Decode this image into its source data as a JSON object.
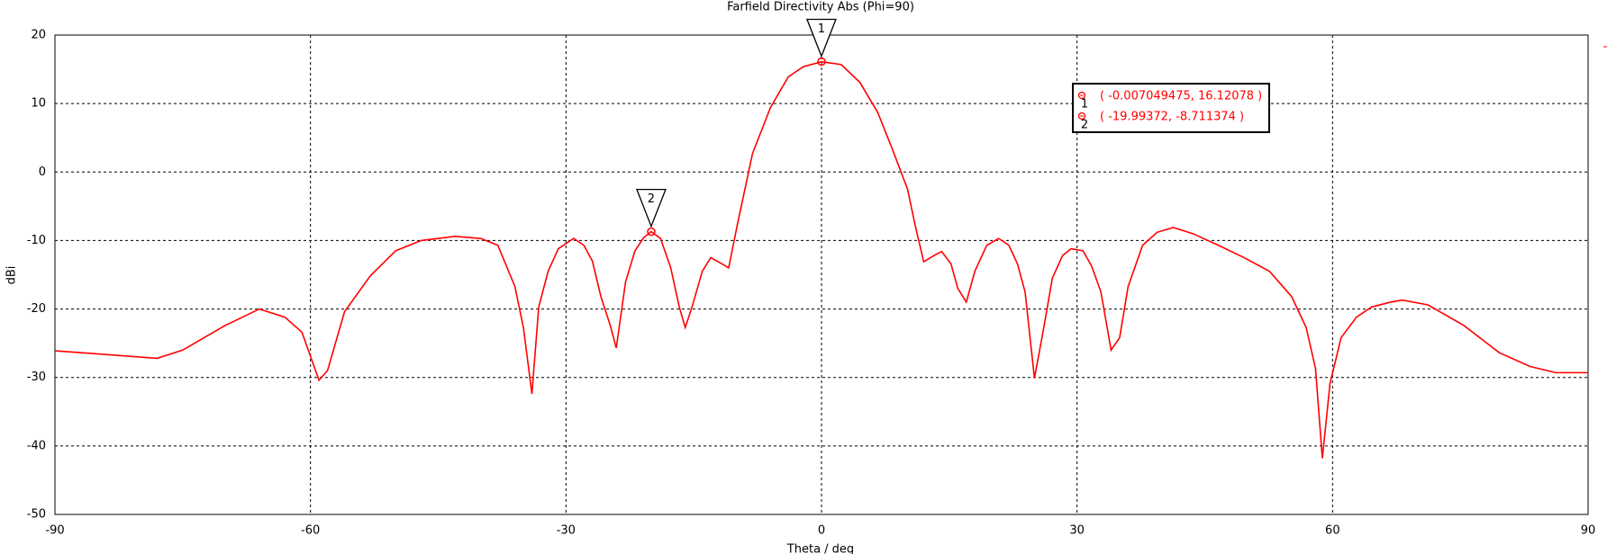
{
  "chart_data": {
    "type": "line",
    "title": "Farfield Directivity Abs (Phi=90)",
    "x_label": "Theta / deg",
    "y_label": "dBi",
    "xlim": [
      -90,
      90
    ],
    "ylim": [
      -50,
      20
    ],
    "xticks": [
      -90,
      -60,
      -30,
      0,
      30,
      60,
      90
    ],
    "yticks": [
      -50,
      -40,
      -30,
      -20,
      -10,
      0,
      10,
      20
    ],
    "grid": true,
    "series": [
      {
        "color": "#ff0000",
        "x": [
          -90,
          -78,
          -75,
          -70,
          -66,
          -63,
          -61,
          -59,
          -58,
          -56,
          -53,
          -50,
          -47,
          -43,
          -40,
          -38,
          -36,
          -35,
          -34,
          -33.2,
          -32.1,
          -30.9,
          -29.1,
          -27.9,
          -26.9,
          -25.9,
          -24.8,
          -24.1,
          -23,
          -21.9,
          -20.9,
          -20,
          -18.9,
          -17.7,
          -16.7,
          -16,
          -15.2,
          -14,
          -13,
          -11.7,
          -10.9,
          -9.9,
          -8.1,
          -6,
          -3.9,
          -2.1,
          0,
          2.3,
          4.5,
          6.6,
          8.3,
          10.1,
          11,
          12,
          13.2,
          14.1,
          15.2,
          16,
          17,
          18,
          19.4,
          20.8,
          22,
          23,
          23.9,
          25,
          26.1,
          27.1,
          28.3,
          29.3,
          30.7,
          31.7,
          32.8,
          34,
          35,
          36,
          37.7,
          39.4,
          41.3,
          43.6,
          46.6,
          49.6,
          52.6,
          55.2,
          56.9,
          58,
          58.8,
          59.7,
          61,
          62.8,
          64.6,
          66.8,
          68.2,
          71.2,
          75.4,
          79.6,
          83.2,
          86.2,
          90
        ],
        "values": [
          -26.1,
          -27.2,
          -26.0,
          -22.4,
          -20.0,
          -21.2,
          -23.4,
          -30.4,
          -29.0,
          -20.4,
          -15.2,
          -11.5,
          -10.0,
          -9.4,
          -9.7,
          -10.7,
          -16.7,
          -22.7,
          -32.4,
          -19.7,
          -14.5,
          -11.2,
          -9.7,
          -10.7,
          -13.0,
          -18.2,
          -22.4,
          -25.7,
          -16.0,
          -11.5,
          -9.6,
          -8.7,
          -9.7,
          -14.0,
          -19.7,
          -22.7,
          -19.7,
          -14.5,
          -12.5,
          -13.4,
          -14.0,
          -7.8,
          2.7,
          9.4,
          13.9,
          15.4,
          16.1,
          15.7,
          13.1,
          8.7,
          3.4,
          -2.5,
          -7.8,
          -13.1,
          -12.2,
          -11.6,
          -13.4,
          -17.0,
          -19.0,
          -14.5,
          -10.7,
          -9.7,
          -10.7,
          -13.4,
          -17.5,
          -30.1,
          -22.7,
          -15.5,
          -12.2,
          -11.2,
          -11.5,
          -13.7,
          -17.5,
          -26.0,
          -24.2,
          -16.7,
          -10.7,
          -8.8,
          -8.1,
          -9.0,
          -10.7,
          -12.5,
          -14.5,
          -18.2,
          -22.7,
          -28.7,
          -41.8,
          -30.9,
          -24.2,
          -21.2,
          -19.7,
          -19.0,
          -18.7,
          -19.4,
          -22.4,
          -26.4,
          -28.4,
          -29.3,
          -29.3
        ]
      }
    ],
    "markers": [
      {
        "label": "1",
        "x": -0.007049475,
        "y": 16.12078,
        "text": "( -0.007049475, 16.12078 )"
      },
      {
        "label": "2",
        "x": -19.99372,
        "y": -8.711374,
        "text": "( -19.99372, -8.711374 )"
      }
    ]
  }
}
